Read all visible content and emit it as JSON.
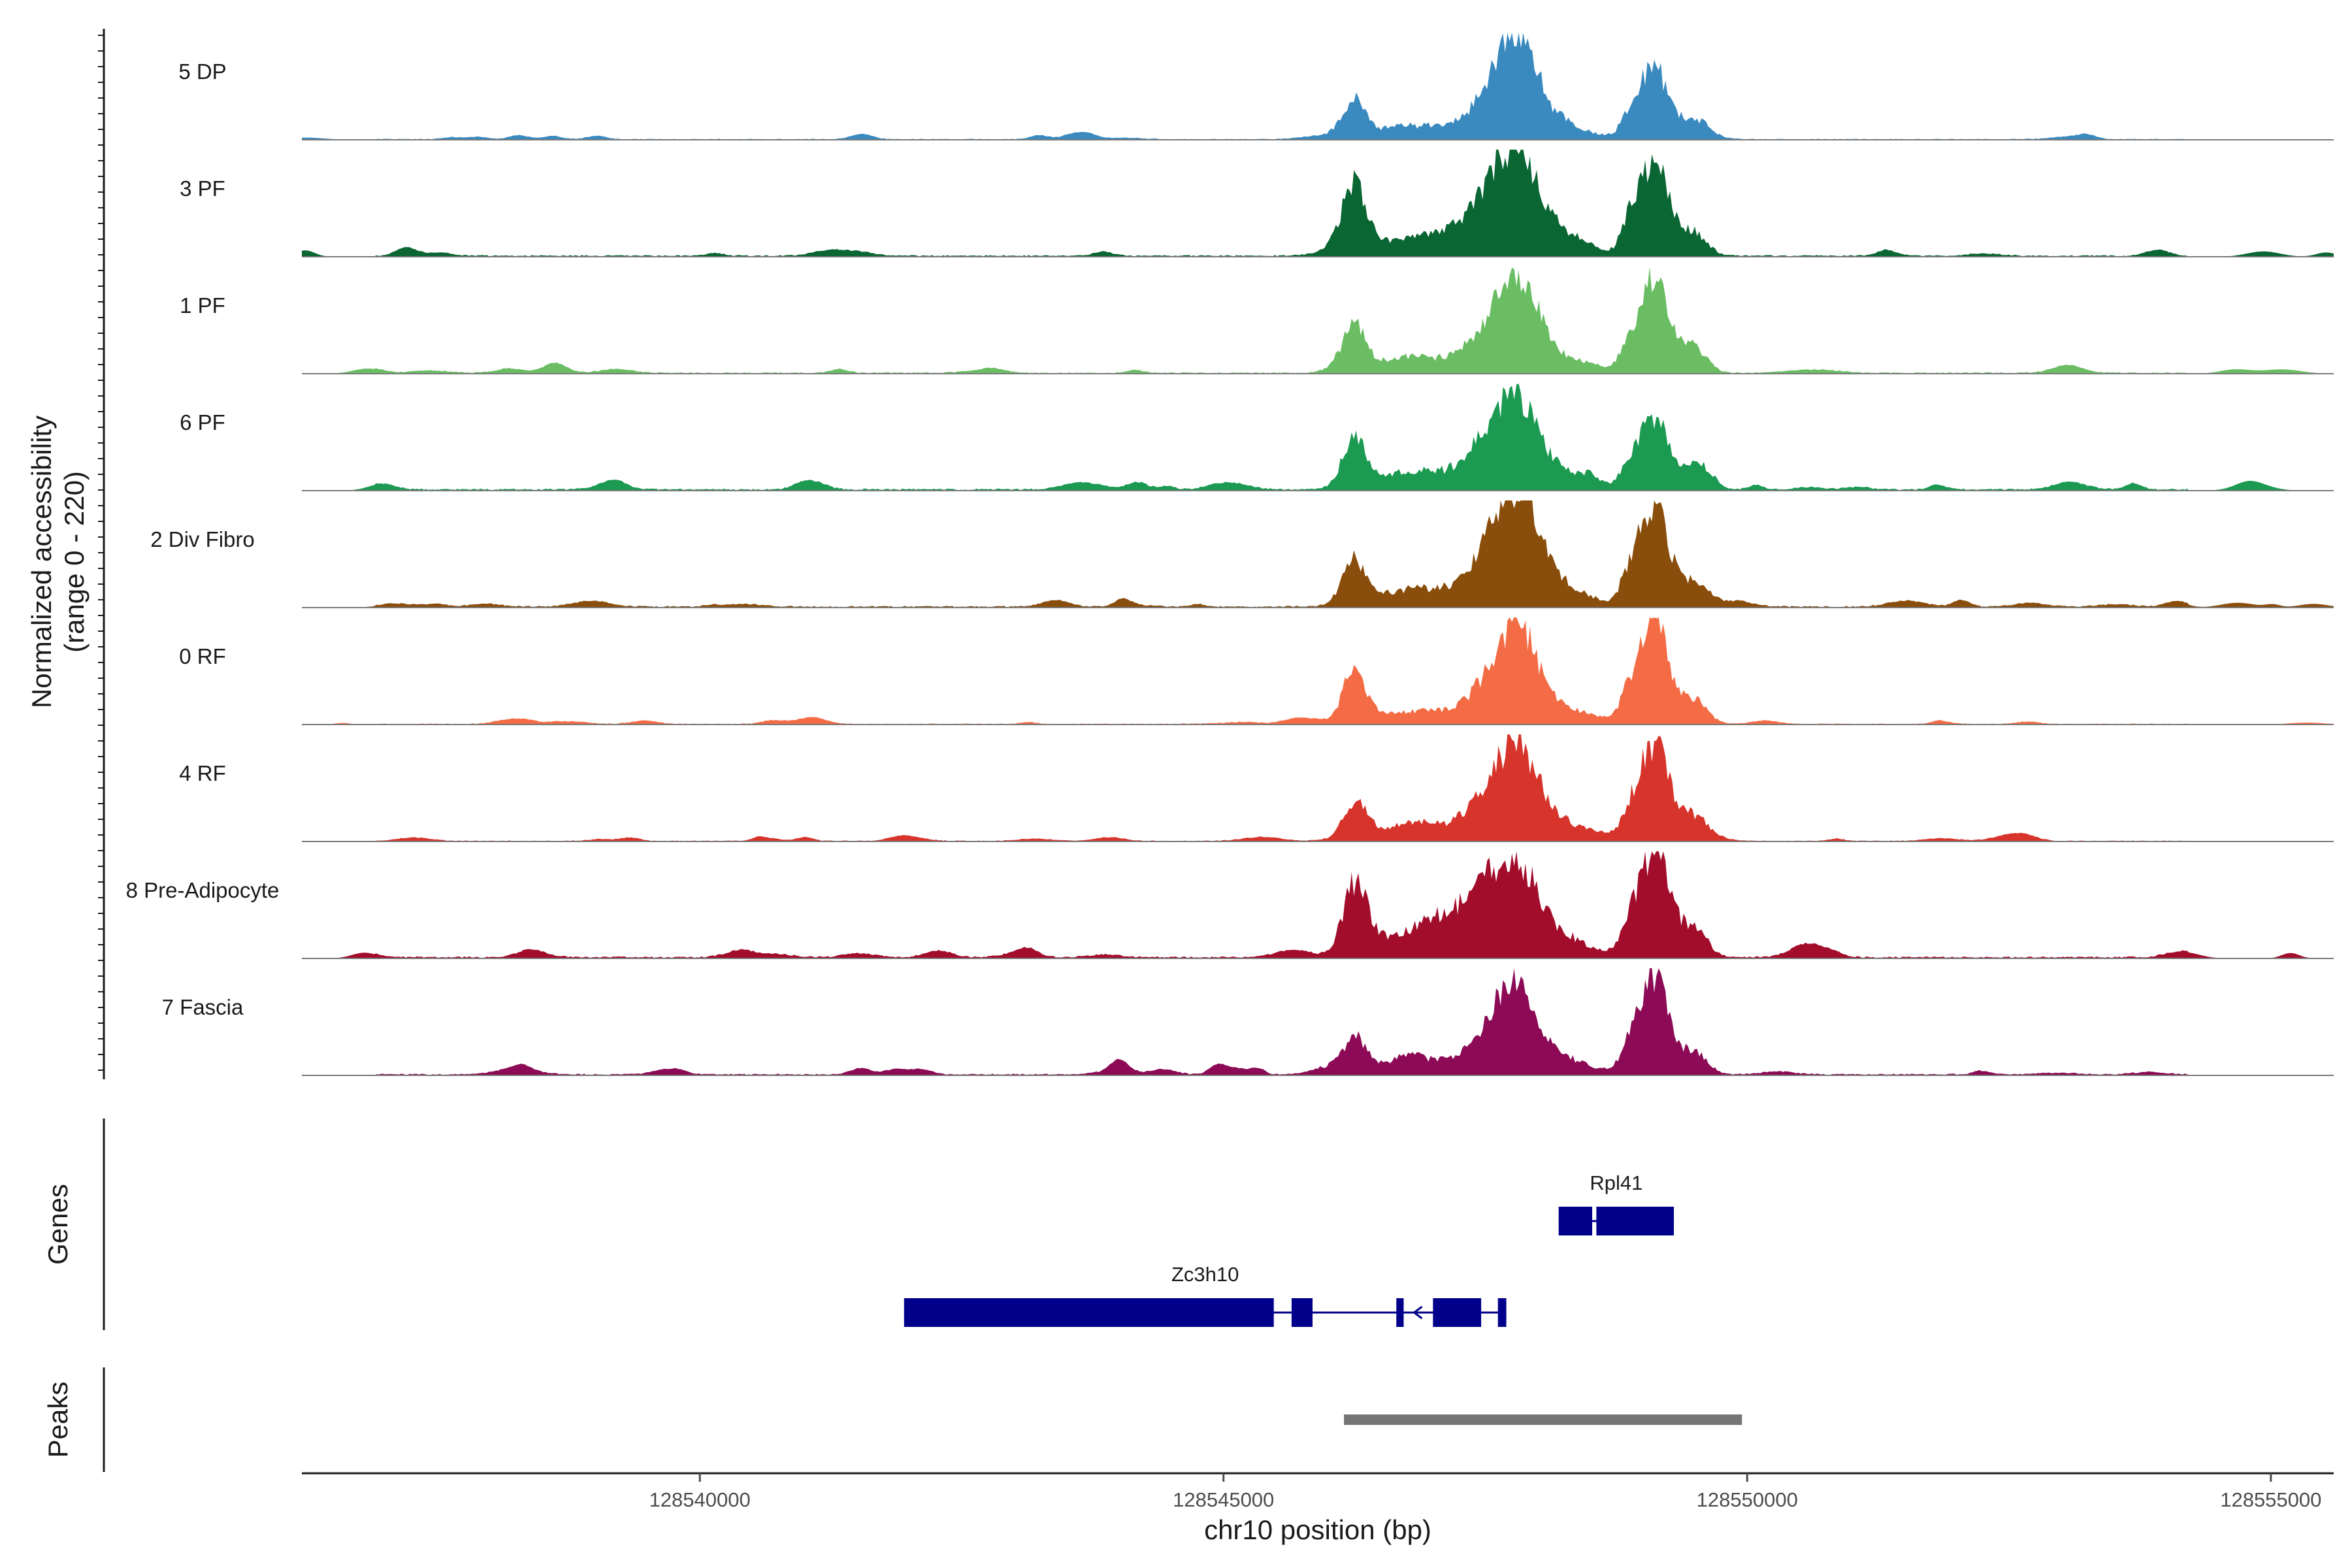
{
  "chart_data": {
    "type": "area",
    "title": "",
    "xlabel": "chr10 position (bp)",
    "ylabel_line1": "Normalized accessibility",
    "ylabel_line2": "(range 0 - 220)",
    "ylim": [
      0,
      220
    ],
    "xlim": [
      128536200,
      128555600
    ],
    "x_ticks": [
      128540000,
      128545000,
      128550000,
      128555000
    ],
    "x_tick_labels": [
      "128540000",
      "128545000",
      "128550000",
      "128555000"
    ],
    "peak_centers": [
      128546250,
      128547800,
      128549100
    ],
    "tracks": [
      {
        "name": "5 DP",
        "color": "#3a8ac0",
        "peak_heights": [
          75,
          200,
          150
        ],
        "hill_heights": [
          40,
          75
        ],
        "background": 3
      },
      {
        "name": "3 PF",
        "color": "#0a6633",
        "peak_heights": [
          115,
          200,
          185
        ],
        "hill_heights": [
          60,
          95
        ],
        "background": 5
      },
      {
        "name": "1 PF",
        "color": "#6abd63",
        "peak_heights": [
          80,
          175,
          185
        ],
        "hill_heights": [
          45,
          90
        ],
        "background": 4
      },
      {
        "name": "6 PF",
        "color": "#1c9a52",
        "peak_heights": [
          100,
          170,
          145
        ],
        "hill_heights": [
          55,
          95
        ],
        "background": 6
      },
      {
        "name": "2 Div Fibro",
        "color": "#8a4e0c",
        "peak_heights": [
          85,
          205,
          200
        ],
        "hill_heights": [
          55,
          110
        ],
        "background": 5
      },
      {
        "name": "0 RF",
        "color": "#f46c45",
        "peak_heights": [
          105,
          180,
          210
        ],
        "hill_heights": [
          40,
          95
        ],
        "background": 3
      },
      {
        "name": "4 RF",
        "color": "#d7352c",
        "peak_heights": [
          70,
          175,
          200
        ],
        "hill_heights": [
          50,
          90
        ],
        "background": 3
      },
      {
        "name": "8 Pre-Adipocyte",
        "color": "#a30d2c",
        "peak_heights": [
          135,
          165,
          210
        ],
        "hill_heights": [
          80,
          120
        ],
        "background": 6
      },
      {
        "name": "7 Fascia",
        "color": "#8c0a56",
        "peak_heights": [
          65,
          155,
          195
        ],
        "hill_heights": [
          45,
          95
        ],
        "background": 5
      }
    ],
    "genes_panel_label": "Genes",
    "genes": [
      {
        "name": "Rpl41",
        "color": "#00008b",
        "start": 128548200,
        "end": 128549300,
        "exons": [
          [
            128548200,
            128548520
          ],
          [
            128548560,
            128549300
          ]
        ]
      },
      {
        "name": "Zc3h10",
        "color": "#00008b",
        "start": 128541950,
        "end": 128547700,
        "exons": [
          [
            128541950,
            128545480
          ],
          [
            128545650,
            128545850
          ],
          [
            128546650,
            128546720
          ],
          [
            128547000,
            128547460
          ],
          [
            128547620,
            128547700
          ]
        ],
        "strand_arrow_at": 128546820
      }
    ],
    "peaks_panel_label": "Peaks",
    "peaks": [
      {
        "start": 128546150,
        "end": 128549950,
        "color": "#757575"
      }
    ]
  }
}
